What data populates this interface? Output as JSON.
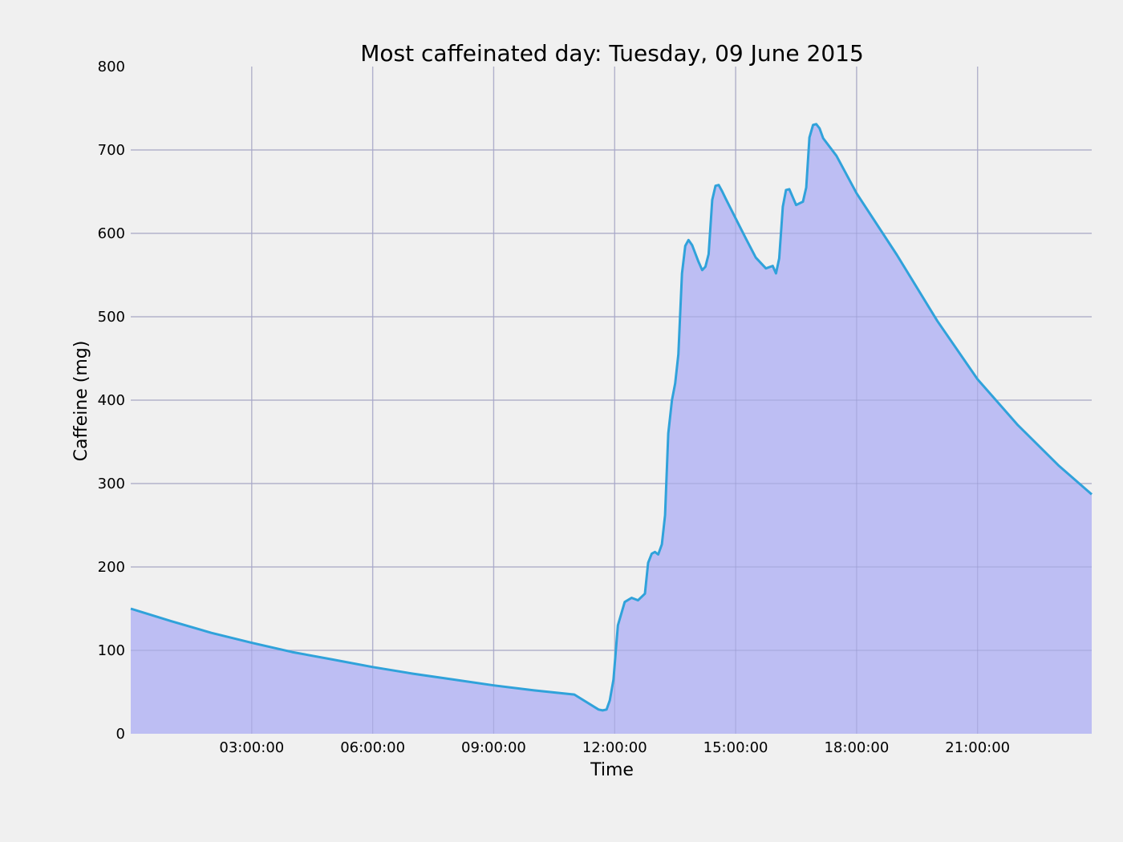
{
  "chart_data": {
    "type": "area",
    "title": "Most caffeinated day: Tuesday, 09 June 2015",
    "xlabel": "Time",
    "ylabel": "Caffeine (mg)",
    "xlim_hours": [
      0,
      23.83
    ],
    "ylim": [
      0,
      800
    ],
    "x_tick_hours": [
      3,
      6,
      9,
      12,
      15,
      18,
      21
    ],
    "x_tick_labels": [
      "03:00:00",
      "06:00:00",
      "09:00:00",
      "12:00:00",
      "15:00:00",
      "18:00:00",
      "21:00:00"
    ],
    "y_ticks": [
      0,
      100,
      200,
      300,
      400,
      500,
      600,
      700,
      800
    ],
    "y_tick_labels": [
      "0",
      "100",
      "200",
      "300",
      "400",
      "500",
      "600",
      "700",
      "800"
    ],
    "grid": true,
    "colors": {
      "line": "#30a2da",
      "fill": "#bdbef3",
      "grid": "#cbcbcb",
      "background": "#f0f0f0"
    },
    "series": [
      {
        "x_hours": [
          0,
          1,
          2,
          3,
          4,
          5,
          6,
          7,
          8,
          9,
          10,
          11,
          11.6,
          11.7,
          11.8,
          11.88,
          11.97,
          12.08,
          12.25,
          12.42,
          12.58,
          12.75,
          12.83,
          12.92,
          13.0,
          13.08,
          13.17,
          13.25,
          13.33,
          13.42,
          13.5,
          13.58,
          13.67,
          13.75,
          13.83,
          13.92,
          14.0,
          14.08,
          14.17,
          14.25,
          14.33,
          14.42,
          14.5,
          14.58,
          14.67,
          14.75,
          15.0,
          15.25,
          15.5,
          15.75,
          15.92,
          16.0,
          16.08,
          16.17,
          16.25,
          16.33,
          16.42,
          16.5,
          16.67,
          16.75,
          16.83,
          16.92,
          17.0,
          17.08,
          17.17,
          17.5,
          18.0,
          19.0,
          20.0,
          21.0,
          22.0,
          23.0,
          23.83
        ],
        "values": [
          150,
          135,
          121,
          109,
          98,
          89,
          80,
          72,
          65,
          58,
          52,
          47,
          29,
          28,
          29,
          40,
          65,
          130,
          158,
          163,
          160,
          168,
          205,
          216,
          218,
          215,
          227,
          262,
          360,
          400,
          420,
          455,
          552,
          585,
          592,
          586,
          576,
          566,
          556,
          560,
          575,
          640,
          657,
          658,
          650,
          642,
          618,
          594,
          571,
          558,
          561,
          552,
          570,
          632,
          652,
          653,
          643,
          634,
          638,
          655,
          715,
          730,
          731,
          726,
          714,
          693,
          648,
          574,
          495,
          425,
          370,
          322,
          287
        ]
      }
    ]
  }
}
